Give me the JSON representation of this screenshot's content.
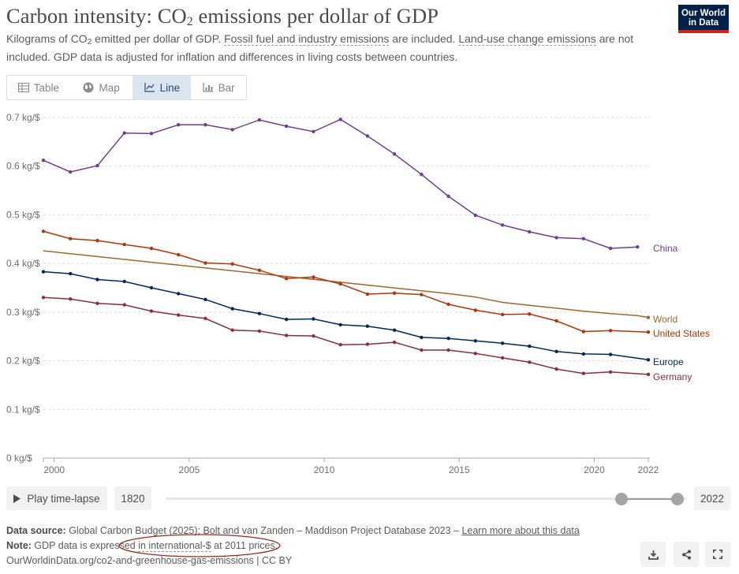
{
  "header": {
    "title_main": "Carbon intensity: CO",
    "title_sub": "2",
    "title_rest": " emissions per dollar of GDP",
    "subtitle_a": "Kilograms of CO",
    "subtitle_sub": "2",
    "subtitle_b": " emitted per dollar of GDP. ",
    "subtitle_link1": "Fossil fuel and industry emissions",
    "subtitle_c": " are included. ",
    "subtitle_link2": "Land-use change emissions",
    "subtitle_d": " are not included. GDP data is adjusted for inflation and differences in living costs between countries."
  },
  "logo": {
    "line1": "Our World",
    "line2": "in Data"
  },
  "tabs": [
    {
      "label": "Table",
      "icon": "table-icon"
    },
    {
      "label": "Map",
      "icon": "globe-icon"
    },
    {
      "label": "Line",
      "icon": "line-chart-icon"
    },
    {
      "label": "Bar",
      "icon": "bar-chart-icon"
    }
  ],
  "controls": {
    "play_label": "Play time-lapse",
    "start_year": "1820",
    "end_year": "2022"
  },
  "footer": {
    "source_label": "Data source:",
    "source_text": " Global Carbon Budget (2025); Bolt and van Zanden – Maddison Project Database 2023 – ",
    "source_link": "Learn more about this data",
    "note_label": "Note:",
    "note_text_a": " GDP data is expressed ",
    "note_link": "in international-$",
    "note_text_b": " at 2011 prices.",
    "url_text": "OurWorldinData.org/co2-and-greenhouse-gas-emissions | CC BY"
  },
  "colors": {
    "China": "#6d3e91",
    "World": "#a2662c",
    "United States": "#b13507",
    "Europe": "#00295b",
    "Germany": "#883039",
    "annotation": "#9a2a1a"
  },
  "chart_data": {
    "type": "line",
    "title": "Carbon intensity: CO2 emissions per dollar of GDP",
    "xlim": [
      1999.6,
      2022
    ],
    "ylim": [
      0,
      0.7
    ],
    "yticks": [
      0,
      0.1,
      0.2,
      0.3,
      0.4,
      0.5,
      0.6,
      0.7
    ],
    "ytick_labels": [
      "0 kg/$",
      "0.1 kg/$",
      "0.2 kg/$",
      "0.3 kg/$",
      "0.4 kg/$",
      "0.5 kg/$",
      "0.6 kg/$",
      "0.7 kg/$"
    ],
    "xticks": [
      2000,
      2005,
      2010,
      2015,
      2020,
      2022
    ],
    "xtick_labels": [
      "2000",
      "2005",
      "2010",
      "2015",
      "2020",
      "2022"
    ],
    "grid": "horizontal dashed",
    "legend": "end-of-line labels",
    "series": [
      {
        "name": "China",
        "points": [
          [
            1999.6,
            0.612
          ],
          [
            2000.6,
            0.588
          ],
          [
            2001.6,
            0.601
          ],
          [
            2002.6,
            0.668
          ],
          [
            2003.6,
            0.667
          ],
          [
            2004.6,
            0.685
          ],
          [
            2005.6,
            0.685
          ],
          [
            2006.6,
            0.675
          ],
          [
            2007.6,
            0.695
          ],
          [
            2008.6,
            0.682
          ],
          [
            2009.6,
            0.671
          ],
          [
            2010.6,
            0.696
          ],
          [
            2011.6,
            0.662
          ],
          [
            2012.6,
            0.625
          ],
          [
            2013.6,
            0.583
          ],
          [
            2014.6,
            0.538
          ],
          [
            2015.6,
            0.499
          ],
          [
            2016.6,
            0.479
          ],
          [
            2017.6,
            0.465
          ],
          [
            2018.6,
            0.453
          ],
          [
            2019.6,
            0.451
          ],
          [
            2020.6,
            0.431
          ],
          [
            2021.6,
            0.434
          ]
        ]
      },
      {
        "name": "World",
        "points": [
          [
            1999.6,
            0.426
          ],
          [
            2014.6,
            0.338
          ],
          [
            2015.6,
            0.331
          ],
          [
            2016.6,
            0.32
          ],
          [
            2017.6,
            0.314
          ],
          [
            2018.6,
            0.308
          ],
          [
            2019.6,
            0.302
          ],
          [
            2020.6,
            0.297
          ],
          [
            2021.6,
            0.293
          ],
          [
            2022,
            0.289
          ]
        ]
      },
      {
        "name": "United States",
        "points": [
          [
            1999.6,
            0.466
          ],
          [
            2000.6,
            0.451
          ],
          [
            2001.6,
            0.447
          ],
          [
            2002.6,
            0.439
          ],
          [
            2003.6,
            0.431
          ],
          [
            2004.6,
            0.418
          ],
          [
            2005.6,
            0.401
          ],
          [
            2006.6,
            0.399
          ],
          [
            2007.6,
            0.386
          ],
          [
            2008.6,
            0.369
          ],
          [
            2009.6,
            0.372
          ],
          [
            2010.6,
            0.358
          ],
          [
            2011.6,
            0.337
          ],
          [
            2012.6,
            0.339
          ],
          [
            2013.6,
            0.336
          ],
          [
            2014.6,
            0.316
          ],
          [
            2015.6,
            0.304
          ],
          [
            2016.6,
            0.295
          ],
          [
            2017.6,
            0.296
          ],
          [
            2018.6,
            0.282
          ],
          [
            2019.6,
            0.26
          ],
          [
            2020.6,
            0.262
          ],
          [
            2022,
            0.259
          ]
        ]
      },
      {
        "name": "Europe",
        "points": [
          [
            1999.6,
            0.383
          ],
          [
            2000.6,
            0.379
          ],
          [
            2001.6,
            0.367
          ],
          [
            2002.6,
            0.363
          ],
          [
            2003.6,
            0.35
          ],
          [
            2004.6,
            0.338
          ],
          [
            2005.6,
            0.326
          ],
          [
            2006.6,
            0.307
          ],
          [
            2007.6,
            0.297
          ],
          [
            2008.6,
            0.285
          ],
          [
            2009.6,
            0.286
          ],
          [
            2010.6,
            0.274
          ],
          [
            2011.6,
            0.271
          ],
          [
            2012.6,
            0.263
          ],
          [
            2013.6,
            0.248
          ],
          [
            2014.6,
            0.246
          ],
          [
            2015.6,
            0.241
          ],
          [
            2016.6,
            0.236
          ],
          [
            2017.6,
            0.23
          ],
          [
            2018.6,
            0.219
          ],
          [
            2019.6,
            0.214
          ],
          [
            2020.6,
            0.213
          ],
          [
            2022,
            0.202
          ]
        ]
      },
      {
        "name": "Germany",
        "points": [
          [
            1999.6,
            0.33
          ],
          [
            2000.6,
            0.327
          ],
          [
            2001.6,
            0.318
          ],
          [
            2002.6,
            0.315
          ],
          [
            2003.6,
            0.302
          ],
          [
            2004.6,
            0.294
          ],
          [
            2005.6,
            0.287
          ],
          [
            2006.6,
            0.263
          ],
          [
            2007.6,
            0.261
          ],
          [
            2008.6,
            0.252
          ],
          [
            2009.6,
            0.251
          ],
          [
            2010.6,
            0.233
          ],
          [
            2011.6,
            0.234
          ],
          [
            2012.6,
            0.238
          ],
          [
            2013.6,
            0.222
          ],
          [
            2014.6,
            0.222
          ],
          [
            2015.6,
            0.215
          ],
          [
            2016.6,
            0.206
          ],
          [
            2017.6,
            0.197
          ],
          [
            2018.6,
            0.183
          ],
          [
            2019.6,
            0.174
          ],
          [
            2020.6,
            0.177
          ],
          [
            2022,
            0.172
          ]
        ]
      }
    ]
  }
}
